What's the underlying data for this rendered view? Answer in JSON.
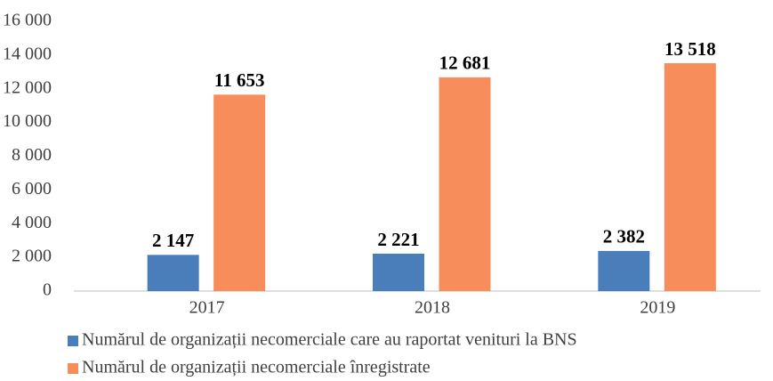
{
  "chart_data": {
    "type": "bar",
    "categories": [
      "2017",
      "2018",
      "2019"
    ],
    "series": [
      {
        "name": "Numărul de organizații necomerciale care au raportat venituri la BNS",
        "color": "#4a7ebb",
        "values": [
          2147,
          2221,
          2382
        ],
        "value_labels": [
          "2 147",
          "2 221",
          "2 382"
        ]
      },
      {
        "name": "Numărul de organizații necomerciale înregistrate",
        "color": "#f68d5a",
        "values": [
          11653,
          12681,
          13518
        ],
        "value_labels": [
          "11 653",
          "12 681",
          "13 518"
        ]
      }
    ],
    "ylim": [
      0,
      16000
    ],
    "yticks": [
      0,
      {
        "value": 2000,
        "label": "2 000"
      },
      {
        "value": 4000,
        "label": "4 000"
      },
      {
        "value": 6000,
        "label": "6 000"
      },
      {
        "value": 8000,
        "label": "8 000"
      },
      {
        "value": 10000,
        "label": "10 000"
      },
      {
        "value": 12000,
        "label": "12 000"
      },
      {
        "value": 14000,
        "label": "14 000"
      },
      {
        "value": 16000,
        "label": "16 000"
      }
    ],
    "grid": false,
    "legend": "bottom"
  }
}
